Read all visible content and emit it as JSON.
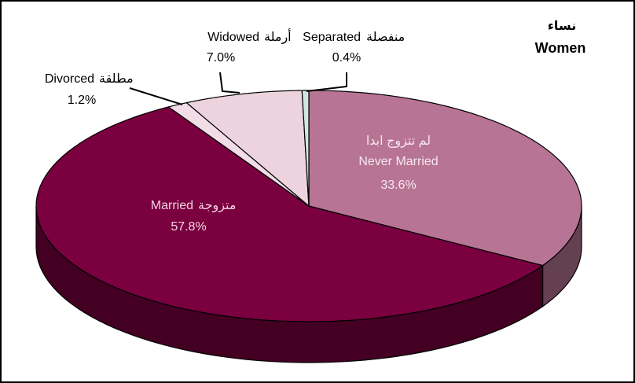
{
  "chart_data": {
    "type": "pie3d",
    "title": "Women",
    "title_ar": "نساء",
    "categories": [
      "Never Married",
      "Married",
      "Divorced",
      "Widowed",
      "Separated"
    ],
    "categories_ar": [
      "لم تتزوج ابدا",
      "متزوجة",
      "مطلقة",
      "أرملة",
      "منفصلة"
    ],
    "values": [
      33.6,
      57.8,
      1.2,
      7.0,
      0.4
    ],
    "value_labels": [
      "33.6%",
      "57.8%",
      "1.2%",
      "7.0%",
      "0.4%"
    ],
    "colors": [
      "#b87494",
      "#7a0040",
      "#f2dde7",
      "#ecd3de",
      "#d3e4e4"
    ]
  }
}
